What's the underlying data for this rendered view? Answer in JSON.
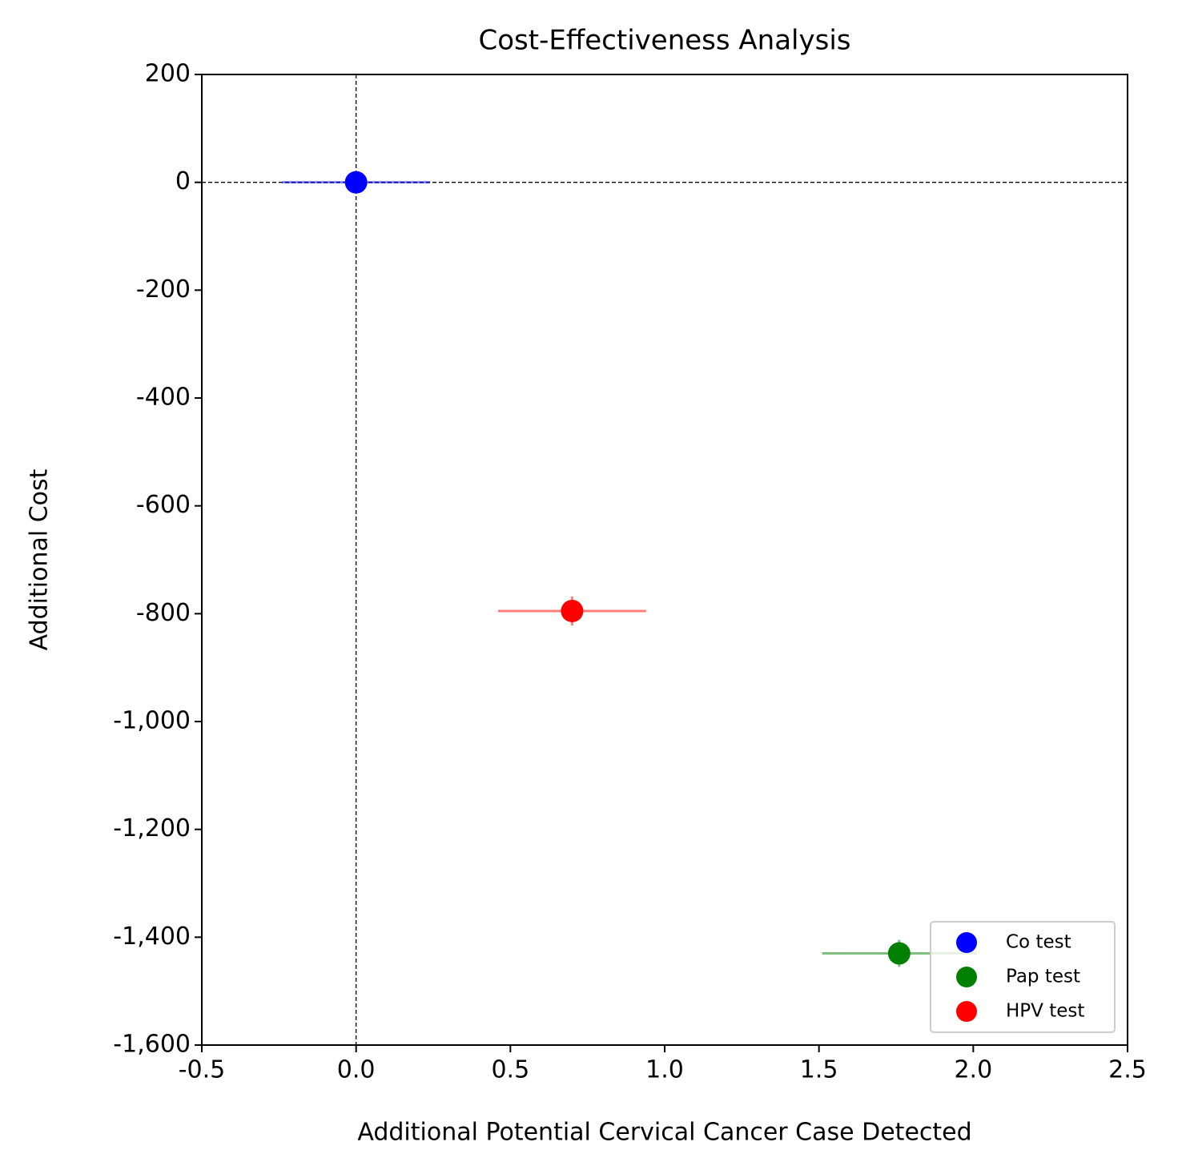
{
  "chart_data": {
    "type": "scatter",
    "title": "Cost-Effectiveness Analysis",
    "x_label": "Additional Potential Cervical Cancer Case Detected",
    "y_label": "Additional Cost",
    "xlim": [
      -0.5,
      2.5
    ],
    "xticks": [
      {
        "value": -0.5,
        "label": "-0.5"
      },
      {
        "value": 0,
        "label": "0.0"
      },
      {
        "value": 0.5,
        "label": "0.5"
      },
      {
        "value": 1,
        "label": "1.0"
      },
      {
        "value": 1.5,
        "label": "1.5"
      },
      {
        "value": 2,
        "label": "2.0"
      },
      {
        "value": 2.5,
        "label": "2.5"
      }
    ],
    "ylim": [
      -1600,
      200
    ],
    "yticks": [
      200,
      0,
      -200,
      -400,
      -600,
      -800,
      {
        "value": -1000,
        "label": "-1,000"
      },
      {
        "value": -1200,
        "label": "-1,200"
      },
      {
        "value": -1400,
        "label": "-1,400"
      },
      {
        "value": -1600,
        "label": "-1,600"
      }
    ],
    "vline": 0,
    "hline": 0,
    "legend": "lower right",
    "series": [
      {
        "name": "Co test",
        "color": "#0000ff",
        "x": [
          0
        ],
        "values": [
          0
        ],
        "xerr": [
          0.24
        ],
        "yerr": [
          5
        ]
      },
      {
        "name": "Pap test",
        "color": "#008000",
        "x": [
          1.76
        ],
        "values": [
          -1430
        ],
        "xerr": [
          0.25
        ],
        "yerr": [
          25
        ]
      },
      {
        "name": "HPV test",
        "color": "#ff0000",
        "x": [
          0.7
        ],
        "values": [
          -795
        ],
        "xerr": [
          0.24
        ],
        "yerr": [
          27
        ]
      }
    ]
  }
}
